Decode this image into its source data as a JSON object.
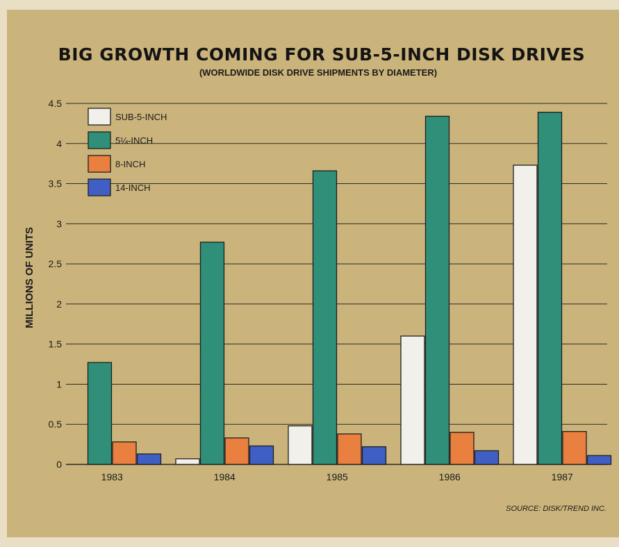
{
  "chart_data": {
    "type": "bar",
    "title": "BIG GROWTH COMING FOR SUB-5-INCH DISK DRIVES",
    "subtitle": "(WORLDWIDE DISK DRIVE SHIPMENTS BY DIAMETER)",
    "xlabel": "",
    "ylabel": "MILLIONS OF UNITS",
    "ylim": [
      0,
      4.5
    ],
    "yticks": [
      "0",
      "0.5",
      "1",
      "1.5",
      "2",
      "2.5",
      "3",
      "3.5",
      "4",
      "4.5"
    ],
    "categories": [
      "1983",
      "1984",
      "1985",
      "1986",
      "1987"
    ],
    "series": [
      {
        "name": "SUB-5-INCH",
        "color": "#f2f0ea",
        "values": [
          0,
          0.07,
          0.48,
          1.6,
          3.73
        ]
      },
      {
        "name": "5¼-INCH",
        "color": "#2f8f79",
        "values": [
          1.27,
          2.77,
          3.66,
          4.34,
          4.39
        ]
      },
      {
        "name": "8-INCH",
        "color": "#e9803f",
        "values": [
          0.28,
          0.33,
          0.38,
          0.4,
          0.41
        ]
      },
      {
        "name": "14-INCH",
        "color": "#3f5fc4",
        "values": [
          0.13,
          0.23,
          0.22,
          0.17,
          0.11
        ]
      }
    ],
    "grid": true,
    "legend_position": "top-left",
    "source": "SOURCE: DISK/TREND INC."
  }
}
